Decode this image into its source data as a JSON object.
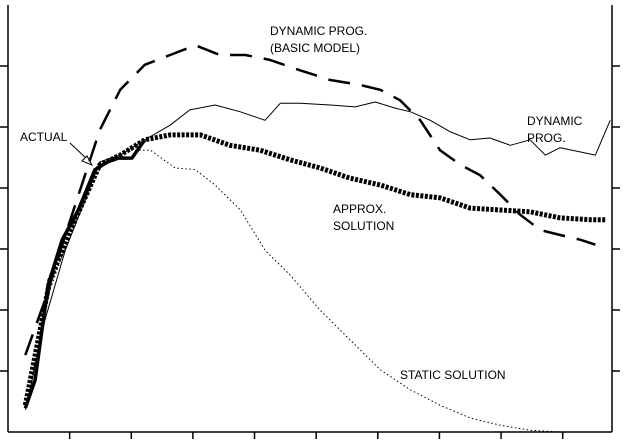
{
  "chart_data": {
    "type": "line",
    "xlim": [
      0,
      9.8
    ],
    "ylim": [
      0,
      7
    ],
    "xticks": [
      1,
      2,
      3,
      4,
      5,
      6,
      7,
      8,
      9
    ],
    "yticks": [
      1,
      2,
      3,
      4,
      5,
      6
    ],
    "series": [
      {
        "label": [
          "ACTUAL"
        ],
        "color": "#000000",
        "style": "thick",
        "x": [
          0.28,
          0.44,
          0.65,
          0.88,
          1.14,
          1.41,
          1.62,
          1.79,
          2.01,
          2.22
        ],
        "values": [
          0.39,
          0.85,
          2.41,
          3.15,
          3.64,
          4.3,
          4.43,
          4.49,
          4.49,
          4.79
        ]
      },
      {
        "label": [
          "DYNAMIC PROG.",
          "(BASIC MODEL)"
        ],
        "color": "#000000",
        "style": "long-dash",
        "x": [
          0.28,
          0.6,
          0.93,
          1.25,
          1.49,
          1.82,
          2.22,
          2.63,
          3.04,
          3.44,
          3.85,
          4.25,
          4.74,
          5.23,
          5.71,
          6.04,
          6.36,
          6.69,
          7.01,
          7.34,
          7.66,
          7.99,
          8.31,
          8.64,
          8.96,
          9.29,
          9.53
        ],
        "values": [
          1.26,
          2.16,
          3.23,
          4.21,
          4.95,
          5.61,
          6.02,
          6.18,
          6.34,
          6.18,
          6.18,
          6.1,
          5.93,
          5.77,
          5.69,
          5.61,
          5.44,
          5.11,
          4.62,
          4.38,
          4.21,
          3.89,
          3.56,
          3.31,
          3.23,
          3.15,
          3.07
        ]
      },
      {
        "label": [
          "DYNAMIC",
          "PROG."
        ],
        "color": "#000000",
        "style": "thin",
        "x": [
          0.32,
          0.6,
          0.93,
          1.25,
          1.49,
          1.82,
          2.22,
          2.63,
          2.95,
          3.36,
          3.77,
          4.17,
          4.42,
          4.74,
          5.23,
          5.63,
          5.96,
          6.28,
          6.53,
          6.85,
          7.18,
          7.5,
          7.82,
          8.15,
          8.47,
          8.72,
          8.96,
          9.29,
          9.53,
          9.77
        ],
        "values": [
          0.52,
          1.84,
          2.98,
          3.8,
          4.43,
          4.54,
          4.79,
          5.03,
          5.28,
          5.36,
          5.25,
          5.11,
          5.39,
          5.39,
          5.36,
          5.33,
          5.41,
          5.31,
          5.25,
          5.11,
          4.92,
          4.79,
          4.82,
          4.7,
          4.79,
          4.54,
          4.66,
          4.59,
          4.54,
          5.11
        ]
      },
      {
        "label": [
          "APPROX.",
          "SOLUTION"
        ],
        "color": "#000000",
        "style": "heavy-dot",
        "x": [
          0.28,
          0.68,
          1.09,
          1.49,
          1.82,
          2.22,
          2.63,
          3.12,
          3.6,
          4.09,
          4.58,
          5.06,
          5.55,
          6.04,
          6.53,
          7.01,
          7.5,
          7.99,
          8.47,
          8.96,
          9.45,
          9.69
        ],
        "values": [
          0.44,
          2.49,
          3.48,
          4.38,
          4.54,
          4.79,
          4.87,
          4.87,
          4.7,
          4.62,
          4.46,
          4.33,
          4.16,
          4.05,
          3.89,
          3.84,
          3.67,
          3.64,
          3.61,
          3.51,
          3.48,
          3.48
        ]
      },
      {
        "label": [
          "STATIC SOLUTION"
        ],
        "color": "#000000",
        "style": "fine-dot",
        "x": [
          0.28,
          0.68,
          1.09,
          1.49,
          1.98,
          2.31,
          2.71,
          3.04,
          3.36,
          3.77,
          4.17,
          4.58,
          5.06,
          5.55,
          6.04,
          6.53,
          7.01,
          7.5,
          7.99,
          8.47,
          8.96,
          9.61
        ],
        "values": [
          0.36,
          2.33,
          3.48,
          4.38,
          4.62,
          4.62,
          4.33,
          4.3,
          4.05,
          3.64,
          2.98,
          2.57,
          2.0,
          1.51,
          1.02,
          0.69,
          0.44,
          0.23,
          0.11,
          0.03,
          0,
          0
        ]
      }
    ]
  }
}
